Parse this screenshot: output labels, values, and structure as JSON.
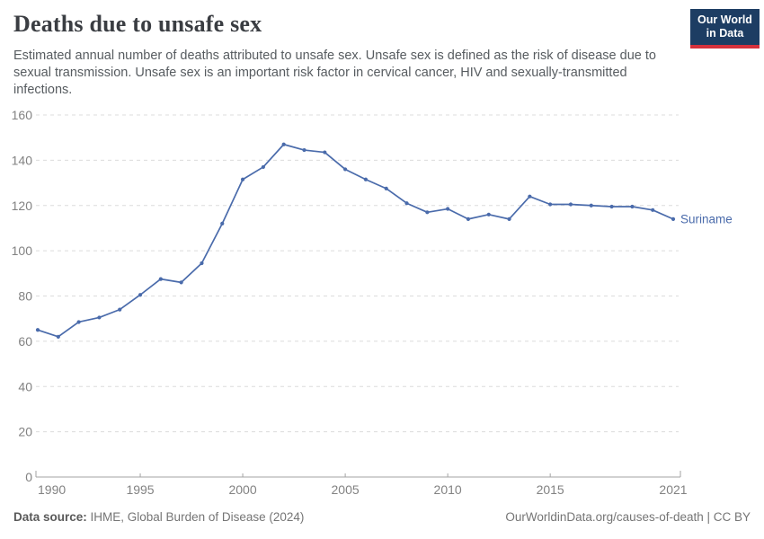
{
  "header": {
    "title": "Deaths due to unsafe sex",
    "subtitle": "Estimated annual number of deaths attributed to unsafe sex. Unsafe sex is defined as the risk of disease due to sexual transmission. Unsafe sex is an important risk factor in cervical cancer, HIV and sexually-transmitted infections.",
    "logo": {
      "line1": "Our World",
      "line2": "in Data",
      "bg_color": "#1d3d63",
      "accent_color": "#d6313c"
    }
  },
  "chart_data": {
    "type": "line",
    "title": "Deaths due to unsafe sex",
    "series": [
      {
        "name": "Suriname",
        "x": [
          1990,
          1991,
          1992,
          1993,
          1994,
          1995,
          1996,
          1997,
          1998,
          1999,
          2000,
          2001,
          2002,
          2003,
          2004,
          2005,
          2006,
          2007,
          2008,
          2009,
          2010,
          2011,
          2012,
          2013,
          2014,
          2015,
          2016,
          2017,
          2018,
          2019,
          2020,
          2021
        ],
        "values": [
          65,
          62,
          68.5,
          70.5,
          74,
          80.5,
          87.5,
          86,
          94.5,
          112,
          131.5,
          137,
          147,
          144.5,
          143.5,
          136,
          131.5,
          127.5,
          121,
          117,
          118.5,
          114,
          116,
          114,
          124,
          120.5,
          120.5,
          120,
          119.5,
          119.5,
          118,
          114
        ]
      }
    ],
    "xlabel": "",
    "ylabel": "",
    "xlim": [
      1990,
      2021
    ],
    "ylim": [
      0,
      160
    ],
    "yticks": [
      0,
      20,
      40,
      60,
      80,
      100,
      120,
      140,
      160
    ],
    "xticks": [
      1990,
      1995,
      2000,
      2005,
      2010,
      2015,
      2021
    ],
    "grid": "horizontal-dashed",
    "legend_position": "end-of-line-label",
    "line_color": "#4a6bab",
    "grid_color": "#dcdcdc",
    "axis_color": "#a3a3a3",
    "tick_label_color": "#828282",
    "entity_label": "Suriname"
  },
  "footer": {
    "source_label": "Data source:",
    "source_value": " IHME, Global Burden of Disease (2024)",
    "link_text": "OurWorldinData.org/causes-of-death | CC BY"
  }
}
